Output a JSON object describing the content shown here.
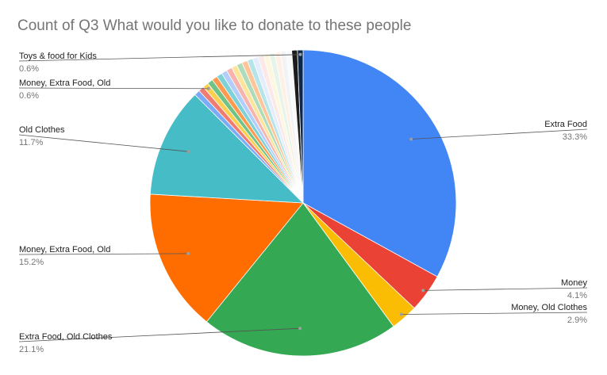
{
  "chart_data": {
    "type": "pie",
    "title": "Count of Q3 What would you like to donate to these people",
    "slices": [
      {
        "name": "Extra Food",
        "value": 33.3,
        "pct_label": "33.3%",
        "color": "#4285F4",
        "labeled": true,
        "side": "right"
      },
      {
        "name": "Money",
        "value": 4.1,
        "pct_label": "4.1%",
        "color": "#EA4335",
        "labeled": true,
        "side": "right"
      },
      {
        "name": "Money, Old Clothes",
        "value": 2.9,
        "pct_label": "2.9%",
        "color": "#FBBC04",
        "labeled": true,
        "side": "right"
      },
      {
        "name": "Extra Food, Old Clothes",
        "value": 21.1,
        "pct_label": "21.1%",
        "color": "#34A853",
        "labeled": true,
        "side": "left"
      },
      {
        "name": "Money, Extra Food, Old",
        "value": 15.2,
        "pct_label": "15.2%",
        "color": "#FF6D01",
        "labeled": true,
        "side": "left"
      },
      {
        "name": "Old Clothes",
        "value": 11.7,
        "pct_label": "11.7%",
        "color": "#46BDC6",
        "labeled": true,
        "side": "left"
      },
      {
        "name": "",
        "value": 0.6,
        "color": "#7BAAF7",
        "labeled": false
      },
      {
        "name": "",
        "value": 0.6,
        "color": "#F07B72",
        "labeled": false
      },
      {
        "name": "Money, Extra Food, Old",
        "value": 0.6,
        "pct_label": "0.6%",
        "color": "#FCD04F",
        "labeled": true,
        "side": "left"
      },
      {
        "name": "",
        "value": 0.6,
        "color": "#71C287",
        "labeled": false
      },
      {
        "name": "",
        "value": 0.6,
        "color": "#FF994D",
        "labeled": false
      },
      {
        "name": "",
        "value": 0.6,
        "color": "#7ED1D7",
        "labeled": false
      },
      {
        "name": "",
        "value": 0.6,
        "color": "#B3CEFB",
        "labeled": false
      },
      {
        "name": "",
        "value": 0.6,
        "color": "#F7B4AE",
        "labeled": false
      },
      {
        "name": "",
        "value": 0.6,
        "color": "#FDE49B",
        "labeled": false
      },
      {
        "name": "",
        "value": 0.6,
        "color": "#AEDCBA",
        "labeled": false
      },
      {
        "name": "",
        "value": 0.6,
        "color": "#FFC599",
        "labeled": false
      },
      {
        "name": "",
        "value": 0.6,
        "color": "#B5E5E8",
        "labeled": false
      },
      {
        "name": "",
        "value": 0.6,
        "color": "#E3EDFD",
        "labeled": false
      },
      {
        "name": "",
        "value": 0.6,
        "color": "#FCE8E6",
        "labeled": false
      },
      {
        "name": "",
        "value": 0.6,
        "color": "#FEF7E0",
        "labeled": false
      },
      {
        "name": "",
        "value": 0.6,
        "color": "#E6F4EA",
        "labeled": false
      },
      {
        "name": "",
        "value": 0.6,
        "color": "#FFF0E6",
        "labeled": false
      },
      {
        "name": "",
        "value": 0.6,
        "color": "#F1F3F4",
        "labeled": false
      },
      {
        "name": "",
        "value": 0.6,
        "color": "#F8F9FA",
        "labeled": false
      },
      {
        "name": "",
        "value": 0.6,
        "color": "#1C1C1C",
        "labeled": false
      },
      {
        "name": "Toys & food for Kids",
        "value": 0.6,
        "pct_label": "0.6%",
        "color": "#0D2747",
        "labeled": true,
        "side": "left"
      }
    ],
    "legend": "none",
    "labels": "outside with leader lines"
  }
}
